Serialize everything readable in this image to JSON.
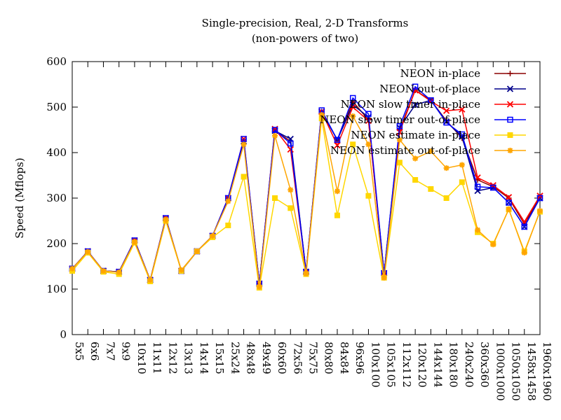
{
  "chart_data": {
    "type": "line",
    "title": "Single-precision, Real, 2-D Transforms",
    "subtitle": "(non-powers of two)",
    "xlabel": "",
    "ylabel": "Speed (Mflops)",
    "ylim": [
      0,
      600
    ],
    "yticks": [
      0,
      100,
      200,
      300,
      400,
      500,
      600
    ],
    "grid": false,
    "legend_position": "top-right",
    "categories": [
      "5x5",
      "6x6",
      "7x7",
      "9x9",
      "10x10",
      "11x11",
      "12x12",
      "13x13",
      "14x14",
      "15x15",
      "25x24",
      "48x48",
      "49x49",
      "60x60",
      "72x56",
      "75x75",
      "80x80",
      "84x84",
      "96x96",
      "100x100",
      "105x105",
      "112x112",
      "120x120",
      "144x144",
      "180x180",
      "240x240",
      "360x360",
      "1000x1000",
      "1050x1050",
      "1458x1458",
      "1960x1960"
    ],
    "series": [
      {
        "name": "NEON in-place",
        "color": "#8b0000",
        "marker": "plus",
        "values": [
          145,
          183,
          140,
          138,
          207,
          120,
          256,
          140,
          183,
          217,
          300,
          425,
          112,
          448,
          425,
          138,
          490,
          428,
          512,
          472,
          135,
          450,
          537,
          515,
          470,
          432,
          340,
          325,
          300,
          243,
          303
        ]
      },
      {
        "name": "NEON out-of-place",
        "color": "#00008b",
        "marker": "cross",
        "values": [
          145,
          183,
          140,
          138,
          207,
          120,
          256,
          140,
          183,
          217,
          300,
          425,
          112,
          448,
          430,
          138,
          490,
          428,
          505,
          478,
          135,
          455,
          505,
          515,
          468,
          435,
          316,
          323,
          290,
          237,
          300
        ]
      },
      {
        "name": "NEON slow timer in-place",
        "color": "#ff0000",
        "marker": "x",
        "values": [
          145,
          183,
          140,
          138,
          207,
          120,
          256,
          140,
          183,
          217,
          300,
          430,
          112,
          452,
          407,
          138,
          490,
          416,
          500,
          470,
          135,
          445,
          537,
          513,
          492,
          495,
          345,
          328,
          302,
          248,
          305
        ]
      },
      {
        "name": "NEON slow timer out-of-place",
        "color": "#0000ff",
        "marker": "square",
        "values": [
          145,
          183,
          140,
          138,
          207,
          120,
          256,
          140,
          183,
          217,
          300,
          430,
          112,
          450,
          420,
          138,
          493,
          428,
          520,
          485,
          135,
          458,
          545,
          515,
          466,
          440,
          325,
          323,
          290,
          237,
          300
        ]
      },
      {
        "name": "NEON estimate in-place",
        "color": "#ffd700",
        "marker": "filled-square",
        "values": [
          140,
          180,
          138,
          133,
          202,
          117,
          250,
          140,
          183,
          214,
          240,
          347,
          103,
          300,
          278,
          133,
          475,
          262,
          418,
          305,
          125,
          378,
          340,
          320,
          300,
          335,
          225,
          200,
          275,
          183,
          270
        ]
      },
      {
        "name": "NEON estimate out-of-place",
        "color": "#ffa500",
        "marker": "star",
        "values": [
          145,
          182,
          140,
          137,
          204,
          120,
          253,
          142,
          183,
          217,
          293,
          418,
          105,
          437,
          318,
          134,
          483,
          315,
          480,
          418,
          125,
          428,
          387,
          403,
          366,
          373,
          230,
          198,
          276,
          180,
          272
        ]
      }
    ]
  }
}
